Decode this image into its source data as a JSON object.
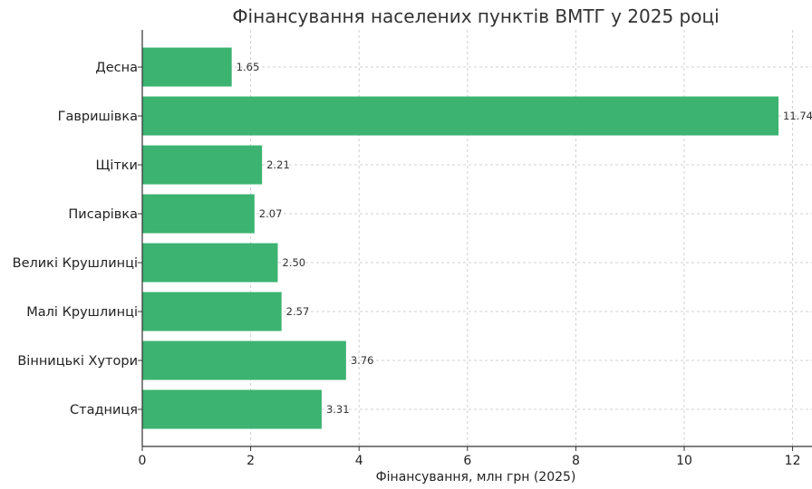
{
  "chart_data": {
    "type": "bar",
    "orientation": "horizontal",
    "title": "Фінансування населених пунктів ВМТГ у 2025 році",
    "xlabel": "Фінансування, млн грн (2025)",
    "ylabel": "",
    "categories": [
      "Десна",
      "Гавришівка",
      "Щітки",
      "Писарівка",
      "Великі Крушлинці",
      "Малі Крушлинці",
      "Вінницькі Хутори",
      "Стадниця"
    ],
    "values": [
      1.65,
      11.74,
      2.21,
      2.07,
      2.5,
      2.57,
      3.76,
      3.31
    ],
    "value_labels": [
      "1.65",
      "11.74",
      "2.21",
      "2.07",
      "2.50",
      "2.57",
      "3.76",
      "3.31"
    ],
    "xlim": [
      0,
      12.3
    ],
    "xticks": [
      0,
      2,
      4,
      6,
      8,
      10,
      12
    ],
    "grid": true,
    "bar_color": "#3cb371"
  }
}
